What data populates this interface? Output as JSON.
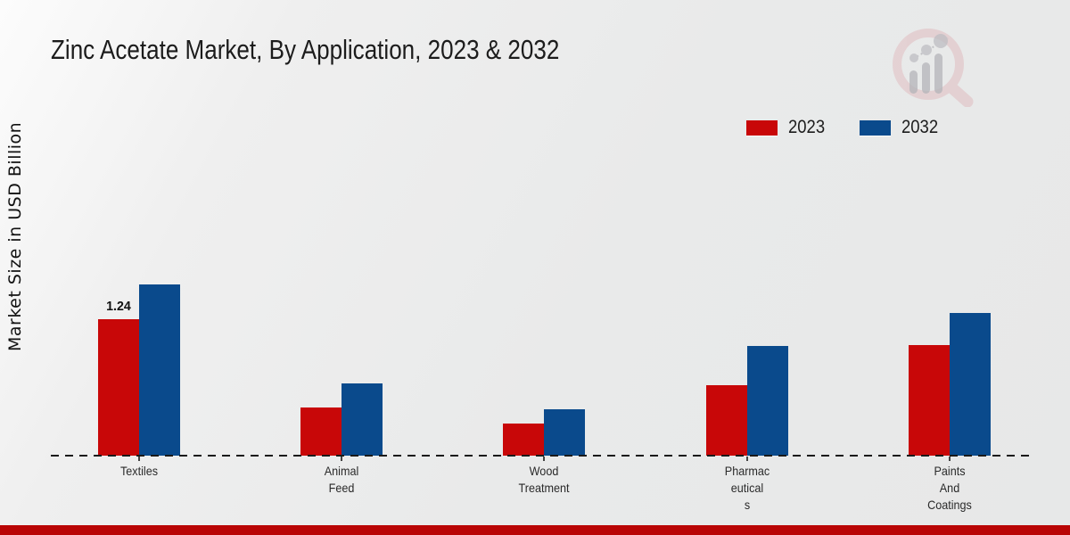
{
  "page": {
    "logo_icon": "magnifier-bar-chart-logo-watermark",
    "footer_bar_color": "#b90505",
    "background_color": "#e9eaea"
  },
  "chart_data": {
    "type": "bar",
    "title": "Zinc Acetate Market, By Application, 2023 & 2032",
    "xlabel": "",
    "ylabel": "Market Size in USD Billion",
    "categories": [
      "Textiles",
      "Animal Feed",
      "Wood Treatment",
      "Pharmaceuticals",
      "Paints And Coatings"
    ],
    "category_label_lines": [
      [
        "Textiles"
      ],
      [
        "Animal",
        "Feed"
      ],
      [
        "Wood",
        "Treatment"
      ],
      [
        "Pharmac",
        "eutical",
        "s"
      ],
      [
        "Paints",
        "And",
        "Coatings"
      ]
    ],
    "series": [
      {
        "name": "2023",
        "color": "#c80708",
        "values": [
          1.24,
          0.44,
          0.29,
          0.64,
          1.01
        ]
      },
      {
        "name": "2032",
        "color": "#0a4a8c",
        "values": [
          1.56,
          0.66,
          0.42,
          1.0,
          1.3
        ]
      }
    ],
    "annotations": [
      {
        "series": "2023",
        "category": "Textiles",
        "text": "1.24"
      }
    ],
    "ylim": [
      0,
      1.7
    ],
    "grid": false,
    "legend_position": "top-right",
    "baseline_style": "dashed",
    "axis_line_color": "#1a1a1a"
  }
}
